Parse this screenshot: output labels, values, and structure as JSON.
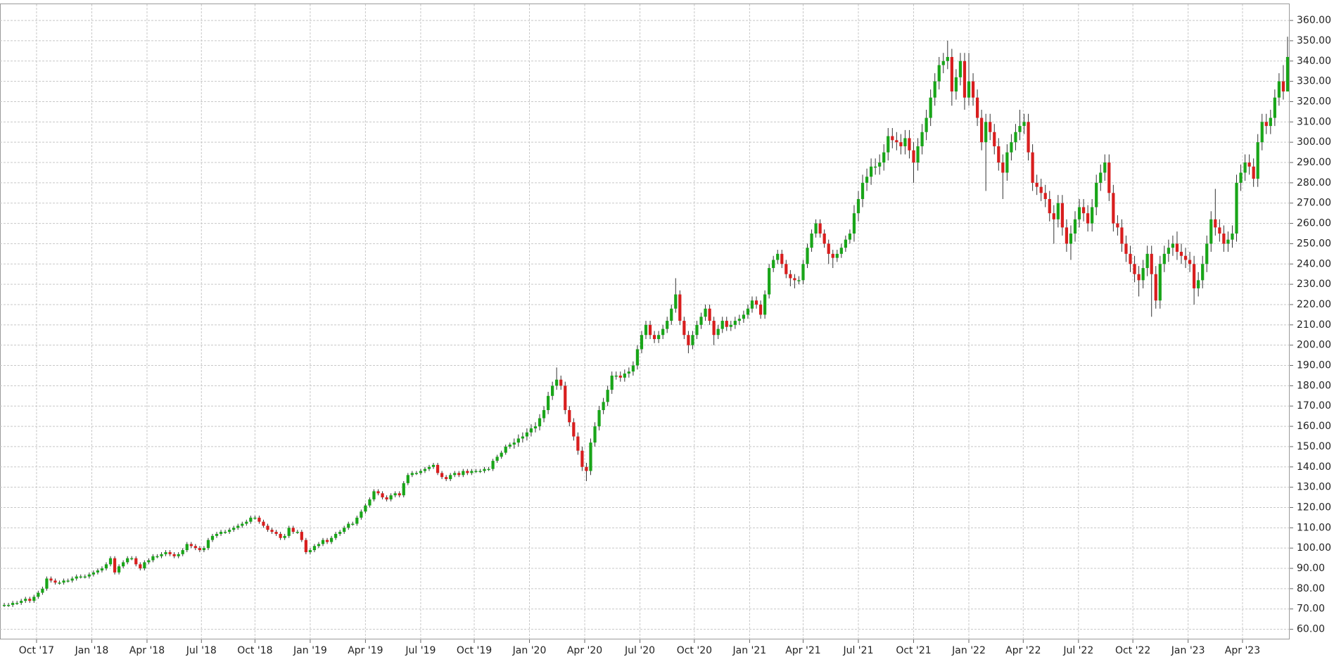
{
  "chart_data": {
    "type": "candlestick",
    "up_color": "#19a519",
    "down_color": "#d81e1e",
    "grid": true,
    "xlim": [
      -1,
      302.5
    ],
    "ylim": [
      55,
      368
    ],
    "xticks": [
      {
        "value": 7.6,
        "label": "Oct '17"
      },
      {
        "value": 20.6,
        "label": "Jan '18"
      },
      {
        "value": 33.6,
        "label": "Apr '18"
      },
      {
        "value": 46.4,
        "label": "Jul '18"
      },
      {
        "value": 59,
        "label": "Oct '18"
      },
      {
        "value": 72,
        "label": "Jan '19"
      },
      {
        "value": 85,
        "label": "Apr '19"
      },
      {
        "value": 98,
        "label": "Jul '19"
      },
      {
        "value": 110.6,
        "label": "Oct '19"
      },
      {
        "value": 123.6,
        "label": "Jan '20"
      },
      {
        "value": 136.6,
        "label": "Apr '20"
      },
      {
        "value": 149.6,
        "label": "Jul '20"
      },
      {
        "value": 162.4,
        "label": "Oct '20"
      },
      {
        "value": 175.4,
        "label": "Jan '21"
      },
      {
        "value": 188,
        "label": "Apr '21"
      },
      {
        "value": 201,
        "label": "Jul '21"
      },
      {
        "value": 214,
        "label": "Oct '21"
      },
      {
        "value": 227,
        "label": "Jan '22"
      },
      {
        "value": 239.8,
        "label": "Apr '22"
      },
      {
        "value": 252.8,
        "label": "Jul '22"
      },
      {
        "value": 265.6,
        "label": "Oct '22"
      },
      {
        "value": 278.6,
        "label": "Jan '23"
      },
      {
        "value": 291.4,
        "label": "Apr '23"
      }
    ],
    "yticks": [
      {
        "value": 60,
        "label": "60.00"
      },
      {
        "value": 70,
        "label": "70.00"
      },
      {
        "value": 80,
        "label": "80.00"
      },
      {
        "value": 90,
        "label": "90.00"
      },
      {
        "value": 100,
        "label": "100.00"
      },
      {
        "value": 110,
        "label": "110.00"
      },
      {
        "value": 120,
        "label": "120.00"
      },
      {
        "value": 130,
        "label": "130.00"
      },
      {
        "value": 140,
        "label": "140.00"
      },
      {
        "value": 150,
        "label": "150.00"
      },
      {
        "value": 160,
        "label": "160.00"
      },
      {
        "value": 170,
        "label": "170.00"
      },
      {
        "value": 180,
        "label": "180.00"
      },
      {
        "value": 190,
        "label": "190.00"
      },
      {
        "value": 200,
        "label": "200.00"
      },
      {
        "value": 210,
        "label": "210.00"
      },
      {
        "value": 220,
        "label": "220.00"
      },
      {
        "value": 230,
        "label": "230.00"
      },
      {
        "value": 240,
        "label": "240.00"
      },
      {
        "value": 250,
        "label": "250.00"
      },
      {
        "value": 260,
        "label": "260.00"
      },
      {
        "value": 270,
        "label": "270.00"
      },
      {
        "value": 280,
        "label": "280.00"
      },
      {
        "value": 290,
        "label": "290.00"
      },
      {
        "value": 300,
        "label": "300.00"
      },
      {
        "value": 310,
        "label": "310.00"
      },
      {
        "value": 320,
        "label": "320.00"
      },
      {
        "value": 330,
        "label": "330.00"
      },
      {
        "value": 340,
        "label": "340.00"
      },
      {
        "value": 350,
        "label": "350.00"
      },
      {
        "value": 360,
        "label": "360.00"
      }
    ],
    "open": [
      72,
      72,
      72,
      73,
      73,
      74,
      75,
      74,
      76,
      78,
      80,
      85,
      84,
      83,
      83,
      84,
      84,
      85,
      86,
      86,
      86,
      87,
      88,
      89,
      90,
      92,
      95,
      88,
      91,
      93,
      95,
      95,
      92,
      90,
      93,
      94,
      96,
      96,
      97,
      98,
      97,
      96,
      97,
      99,
      102,
      101,
      100,
      99,
      100,
      104,
      106,
      107,
      108,
      108,
      109,
      110,
      111,
      112,
      113,
      115,
      115,
      113,
      111,
      109,
      108,
      107,
      105,
      106,
      110,
      108,
      108,
      104,
      98,
      99,
      101,
      102,
      104,
      103,
      105,
      107,
      108,
      110,
      112,
      112,
      115,
      118,
      121,
      124,
      128,
      127,
      125,
      124,
      126,
      127,
      126,
      132,
      136,
      137,
      137,
      138,
      139,
      140,
      141,
      137,
      135,
      134,
      136,
      137,
      136,
      138,
      137,
      138,
      138,
      138,
      139,
      139,
      143,
      145,
      147,
      150,
      151,
      152,
      154,
      155,
      157,
      159,
      160,
      164,
      168,
      175,
      180,
      183,
      180,
      168,
      162,
      155,
      148,
      140,
      138,
      152,
      160,
      168,
      172,
      178,
      185,
      185,
      184,
      186,
      187,
      190,
      198,
      205,
      210,
      205,
      203,
      205,
      208,
      212,
      218,
      225,
      212,
      205,
      200,
      205,
      210,
      214,
      218,
      212,
      205,
      208,
      212,
      209,
      210,
      212,
      213,
      215,
      218,
      222,
      220,
      215,
      225,
      238,
      242,
      245,
      240,
      235,
      233,
      232,
      232,
      240,
      248,
      255,
      260,
      255,
      250,
      245,
      243,
      245,
      248,
      252,
      255,
      265,
      272,
      280,
      283,
      288,
      288,
      290,
      295,
      303,
      301,
      300,
      298,
      302,
      296,
      290,
      298,
      305,
      312,
      322,
      330,
      338,
      340,
      342,
      325,
      332,
      340,
      322,
      330,
      322,
      312,
      300,
      310,
      305,
      298,
      290,
      285,
      295,
      300,
      305,
      308,
      310,
      295,
      280,
      278,
      275,
      272,
      265,
      262,
      270,
      258,
      250,
      255,
      262,
      268,
      265,
      260,
      268,
      280,
      285,
      290,
      275,
      260,
      258,
      250,
      245,
      240,
      235,
      232,
      238,
      245,
      235,
      222,
      240,
      245,
      248,
      250,
      246,
      244,
      242,
      240,
      228,
      232,
      240,
      250,
      262,
      258,
      255,
      250,
      252,
      255,
      280,
      285,
      290,
      288,
      282,
      300,
      310,
      308,
      312,
      322,
      330,
      325
    ],
    "high": [
      73,
      73,
      74,
      74,
      75,
      76,
      76,
      77,
      79,
      81,
      86,
      86,
      85,
      84,
      85,
      85,
      86,
      87,
      87,
      87,
      88,
      89,
      90,
      91,
      93,
      96,
      96,
      92,
      94,
      96,
      96,
      96,
      93,
      94,
      95,
      97,
      97,
      98,
      99,
      99,
      98,
      98,
      100,
      103,
      103,
      102,
      101,
      101,
      105,
      107,
      108,
      109,
      109,
      110,
      111,
      112,
      113,
      114,
      116,
      116,
      116,
      114,
      112,
      110,
      109,
      108,
      107,
      111,
      111,
      109,
      109,
      105,
      100,
      102,
      103,
      105,
      105,
      106,
      108,
      109,
      111,
      113,
      113,
      116,
      119,
      122,
      125,
      129,
      129,
      128,
      126,
      127,
      128,
      128,
      133,
      137,
      138,
      138,
      139,
      140,
      141,
      142,
      142,
      138,
      136,
      137,
      138,
      138,
      139,
      139,
      139,
      139,
      139,
      140,
      140,
      144,
      146,
      148,
      151,
      152,
      154,
      156,
      157,
      159,
      161,
      162,
      166,
      170,
      177,
      182,
      189,
      185,
      182,
      170,
      164,
      157,
      150,
      142,
      154,
      162,
      170,
      174,
      180,
      187,
      187,
      187,
      188,
      189,
      192,
      200,
      207,
      212,
      212,
      207,
      207,
      210,
      214,
      220,
      233,
      227,
      214,
      207,
      207,
      212,
      216,
      220,
      220,
      214,
      210,
      214,
      214,
      212,
      214,
      215,
      217,
      220,
      224,
      224,
      222,
      227,
      240,
      244,
      247,
      247,
      242,
      237,
      235,
      234,
      242,
      250,
      257,
      262,
      262,
      257,
      252,
      247,
      247,
      250,
      254,
      257,
      269,
      276,
      284,
      287,
      292,
      292,
      294,
      299,
      307,
      307,
      305,
      304,
      306,
      306,
      300,
      302,
      309,
      316,
      326,
      334,
      342,
      344,
      350,
      346,
      336,
      344,
      344,
      344,
      334,
      326,
      316,
      314,
      314,
      309,
      302,
      294,
      299,
      304,
      309,
      316,
      314,
      314,
      299,
      284,
      282,
      279,
      276,
      269,
      274,
      274,
      262,
      259,
      266,
      272,
      272,
      269,
      272,
      284,
      289,
      294,
      294,
      279,
      264,
      262,
      254,
      249,
      244,
      239,
      242,
      249,
      249,
      239,
      244,
      249,
      252,
      254,
      256,
      250,
      248,
      246,
      244,
      236,
      244,
      254,
      266,
      277,
      262,
      259,
      256,
      259,
      284,
      289,
      294,
      294,
      292,
      304,
      314,
      314,
      316,
      326,
      334,
      338,
      352
    ],
    "low": [
      71,
      71,
      71,
      72,
      72,
      73,
      73,
      73,
      75,
      77,
      79,
      83,
      82,
      82,
      82,
      83,
      83,
      84,
      85,
      85,
      85,
      86,
      87,
      88,
      89,
      91,
      87,
      87,
      90,
      92,
      94,
      91,
      89,
      89,
      92,
      93,
      95,
      95,
      96,
      96,
      95,
      95,
      96,
      98,
      100,
      99,
      98,
      98,
      99,
      103,
      105,
      106,
      107,
      107,
      108,
      109,
      110,
      111,
      112,
      114,
      112,
      110,
      108,
      107,
      106,
      104,
      104,
      105,
      107,
      107,
      103,
      97,
      97,
      98,
      100,
      101,
      102,
      102,
      104,
      106,
      107,
      109,
      111,
      111,
      114,
      117,
      120,
      123,
      126,
      124,
      123,
      123,
      125,
      125,
      125,
      131,
      135,
      136,
      136,
      137,
      138,
      139,
      136,
      134,
      133,
      133,
      135,
      135,
      135,
      136,
      136,
      137,
      137,
      137,
      138,
      138,
      142,
      144,
      146,
      149,
      149,
      150,
      152,
      153,
      155,
      157,
      158,
      162,
      166,
      173,
      178,
      178,
      166,
      160,
      153,
      146,
      138,
      133,
      136,
      150,
      158,
      166,
      170,
      176,
      183,
      182,
      182,
      184,
      185,
      188,
      196,
      203,
      203,
      201,
      201,
      203,
      206,
      210,
      216,
      210,
      203,
      196,
      198,
      203,
      208,
      212,
      210,
      200,
      203,
      206,
      207,
      207,
      208,
      210,
      211,
      213,
      216,
      218,
      213,
      213,
      223,
      236,
      240,
      238,
      233,
      229,
      228,
      230,
      230,
      238,
      246,
      253,
      253,
      248,
      240,
      238,
      241,
      243,
      246,
      250,
      251,
      261,
      268,
      276,
      279,
      284,
      284,
      286,
      291,
      297,
      296,
      294,
      294,
      292,
      280,
      286,
      294,
      301,
      308,
      318,
      326,
      334,
      336,
      318,
      321,
      328,
      316,
      318,
      318,
      308,
      296,
      276,
      301,
      294,
      286,
      272,
      281,
      291,
      296,
      301,
      304,
      291,
      276,
      274,
      271,
      268,
      261,
      250,
      258,
      254,
      246,
      242,
      251,
      258,
      261,
      256,
      256,
      264,
      276,
      281,
      271,
      256,
      254,
      246,
      241,
      236,
      231,
      224,
      228,
      234,
      214,
      218,
      218,
      236,
      241,
      244,
      242,
      240,
      238,
      236,
      220,
      224,
      228,
      236,
      246,
      254,
      251,
      246,
      246,
      248,
      251,
      276,
      281,
      284,
      278,
      278,
      296,
      304,
      304,
      308,
      318,
      321,
      328
    ],
    "close": [
      72,
      72,
      73,
      73,
      74,
      75,
      74,
      76,
      78,
      80,
      85,
      84,
      83,
      83,
      84,
      84,
      85,
      86,
      86,
      86,
      87,
      88,
      89,
      90,
      92,
      95,
      88,
      91,
      93,
      95,
      95,
      92,
      90,
      93,
      94,
      96,
      96,
      97,
      98,
      97,
      96,
      97,
      99,
      102,
      101,
      100,
      99,
      100,
      104,
      106,
      107,
      108,
      108,
      109,
      110,
      111,
      112,
      113,
      115,
      115,
      113,
      111,
      109,
      108,
      107,
      105,
      106,
      110,
      108,
      108,
      104,
      98,
      99,
      101,
      102,
      104,
      103,
      105,
      107,
      108,
      110,
      112,
      112,
      115,
      118,
      121,
      124,
      128,
      127,
      125,
      124,
      126,
      127,
      126,
      132,
      136,
      137,
      137,
      138,
      139,
      140,
      141,
      137,
      135,
      134,
      136,
      137,
      136,
      138,
      137,
      138,
      138,
      138,
      139,
      139,
      143,
      145,
      147,
      150,
      151,
      152,
      154,
      155,
      157,
      159,
      160,
      164,
      168,
      175,
      180,
      183,
      180,
      168,
      162,
      155,
      148,
      140,
      138,
      152,
      160,
      168,
      172,
      178,
      185,
      185,
      184,
      186,
      187,
      190,
      198,
      205,
      210,
      205,
      203,
      205,
      208,
      212,
      218,
      225,
      212,
      205,
      200,
      205,
      210,
      214,
      218,
      212,
      205,
      208,
      212,
      209,
      210,
      212,
      213,
      215,
      218,
      222,
      220,
      215,
      225,
      238,
      242,
      245,
      240,
      235,
      233,
      232,
      232,
      240,
      248,
      255,
      260,
      255,
      250,
      245,
      243,
      245,
      248,
      252,
      255,
      265,
      272,
      280,
      283,
      288,
      288,
      290,
      295,
      303,
      301,
      300,
      298,
      302,
      296,
      290,
      298,
      305,
      312,
      322,
      330,
      338,
      340,
      342,
      325,
      332,
      340,
      322,
      330,
      322,
      312,
      300,
      310,
      305,
      298,
      290,
      285,
      295,
      300,
      305,
      308,
      310,
      295,
      280,
      278,
      275,
      272,
      265,
      262,
      270,
      258,
      250,
      255,
      262,
      268,
      265,
      260,
      268,
      280,
      285,
      290,
      275,
      260,
      258,
      250,
      245,
      240,
      235,
      232,
      238,
      245,
      235,
      222,
      240,
      245,
      248,
      250,
      246,
      244,
      242,
      240,
      228,
      232,
      240,
      250,
      262,
      258,
      255,
      250,
      252,
      255,
      280,
      285,
      290,
      288,
      282,
      300,
      310,
      308,
      312,
      322,
      330,
      325,
      342
    ]
  }
}
